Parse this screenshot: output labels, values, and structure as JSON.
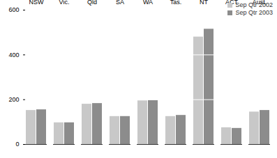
{
  "chart_data": {
    "type": "bar",
    "categories": [
      "NSW",
      "Vic.",
      "Qld",
      "SA",
      "WA",
      "Tas.",
      "NT",
      "ACT",
      "Aust."
    ],
    "series": [
      {
        "name": "Sep Qtr 2002",
        "color": "#c8c8c8",
        "values": [
          152,
          97,
          180,
          125,
          195,
          125,
          480,
          75,
          145
        ]
      },
      {
        "name": "Sep Qtr 2003",
        "color": "#8c8c8c",
        "values": [
          155,
          97,
          183,
          125,
          196,
          130,
          515,
          72,
          152
        ]
      }
    ],
    "ylim": [
      0,
      600
    ],
    "yticks": [
      0,
      200,
      400,
      600
    ],
    "grid": true,
    "legend": "top-right"
  }
}
